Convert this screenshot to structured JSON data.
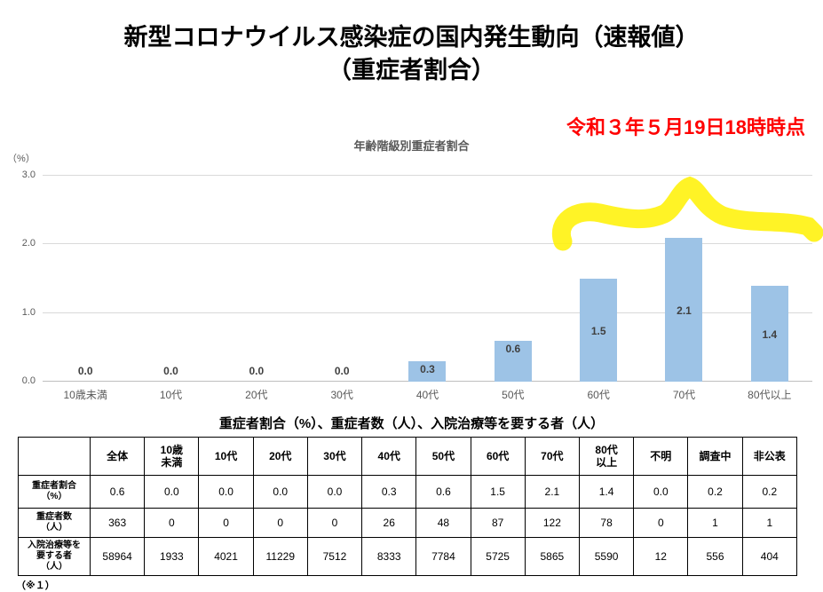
{
  "title": {
    "line1": "新型コロナウイルス感染症の国内発生動向（速報値）",
    "line2": "（重症者割合）"
  },
  "timestamp": "令和３年５月19日18時時点",
  "chart_data": {
    "type": "bar",
    "title": "年齢階級別重症者割合",
    "unit_label": "（%）",
    "categories": [
      "10歳未満",
      "10代",
      "20代",
      "30代",
      "40代",
      "50代",
      "60代",
      "70代",
      "80代以上"
    ],
    "values": [
      0.0,
      0.0,
      0.0,
      0.0,
      0.3,
      0.6,
      1.5,
      2.1,
      1.4
    ],
    "ylim": [
      0,
      3.0
    ],
    "yticks": [
      "0.0",
      "1.0",
      "2.0",
      "3.0"
    ],
    "grid": true,
    "legend": "none",
    "bar_color": "#9dc3e6",
    "highlight_color": "#fff100",
    "annotations": [
      "hand-drawn yellow marker highlight above the 60代–80代以上 bars"
    ]
  },
  "table": {
    "title": "重症者割合（%）、重症者数（人）、入院治療等を要する者（人）",
    "headers": [
      "",
      "全体",
      "10歳\n未満",
      "10代",
      "20代",
      "30代",
      "40代",
      "50代",
      "60代",
      "70代",
      "80代\n以上",
      "不明",
      "調査中",
      "非公表"
    ],
    "rows": [
      {
        "label": "重症者割合\n（%）",
        "values": [
          "0.6",
          "0.0",
          "0.0",
          "0.0",
          "0.0",
          "0.3",
          "0.6",
          "1.5",
          "2.1",
          "1.4",
          "0.0",
          "0.2",
          "0.2"
        ]
      },
      {
        "label": "重症者数\n（人）",
        "values": [
          "363",
          "0",
          "0",
          "0",
          "0",
          "26",
          "48",
          "87",
          "122",
          "78",
          "0",
          "1",
          "1"
        ]
      },
      {
        "label": "入院治療等を\n要する者\n（人）",
        "values": [
          "58964",
          "1933",
          "4021",
          "11229",
          "7512",
          "8333",
          "7784",
          "5725",
          "5865",
          "5590",
          "12",
          "556",
          "404"
        ]
      }
    ]
  },
  "footnote": "（※１）"
}
